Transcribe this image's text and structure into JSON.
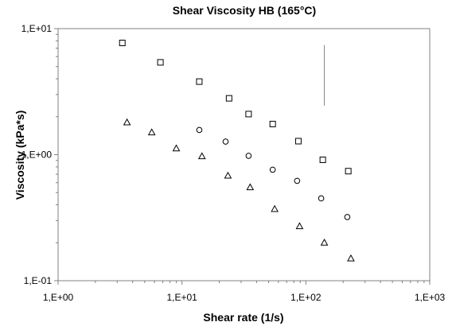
{
  "chart_data": {
    "type": "scatter",
    "title": "Shear Viscosity HB (165°C)",
    "xlabel": "Shear rate (1/s)",
    "ylabel": "Viscosity (kPa*s)",
    "x_scale": "log",
    "y_scale": "log",
    "xlim": [
      1,
      1000
    ],
    "ylim": [
      0.1,
      10
    ],
    "x_ticks": [
      {
        "value": 1,
        "label": "1,E+00"
      },
      {
        "value": 10,
        "label": "1,E+01"
      },
      {
        "value": 100,
        "label": "1,E+02"
      },
      {
        "value": 1000,
        "label": "1,E+03"
      }
    ],
    "y_ticks": [
      {
        "value": 0.1,
        "label": "1,E-01"
      },
      {
        "value": 1,
        "label": "1,E+00"
      },
      {
        "value": 10,
        "label": "1,E+01"
      }
    ],
    "grid": false,
    "legend": "none",
    "series": [
      {
        "marker": "square",
        "x": [
          3.3,
          6.7,
          13.8,
          24.0,
          34.5,
          54.0,
          87.0,
          137.0,
          220.0
        ],
        "y": [
          7.7,
          5.4,
          3.8,
          2.8,
          2.1,
          1.75,
          1.28,
          0.91,
          0.74
        ]
      },
      {
        "marker": "circle",
        "x": [
          13.8,
          22.5,
          34.5,
          54.0,
          85.0,
          133.0,
          216.0
        ],
        "y": [
          1.57,
          1.27,
          0.98,
          0.76,
          0.62,
          0.45,
          0.32
        ]
      },
      {
        "marker": "triangle",
        "x": [
          3.6,
          5.7,
          9.0,
          14.5,
          23.5,
          35.5,
          56.0,
          89.0,
          141.0,
          231.0
        ],
        "y": [
          1.8,
          1.5,
          1.12,
          0.97,
          0.68,
          0.55,
          0.37,
          0.27,
          0.2,
          0.15
        ]
      }
    ],
    "annotations": [
      {
        "type": "vertical-line",
        "x": 141,
        "y_range": [
          2.45,
          7.4
        ]
      }
    ]
  }
}
